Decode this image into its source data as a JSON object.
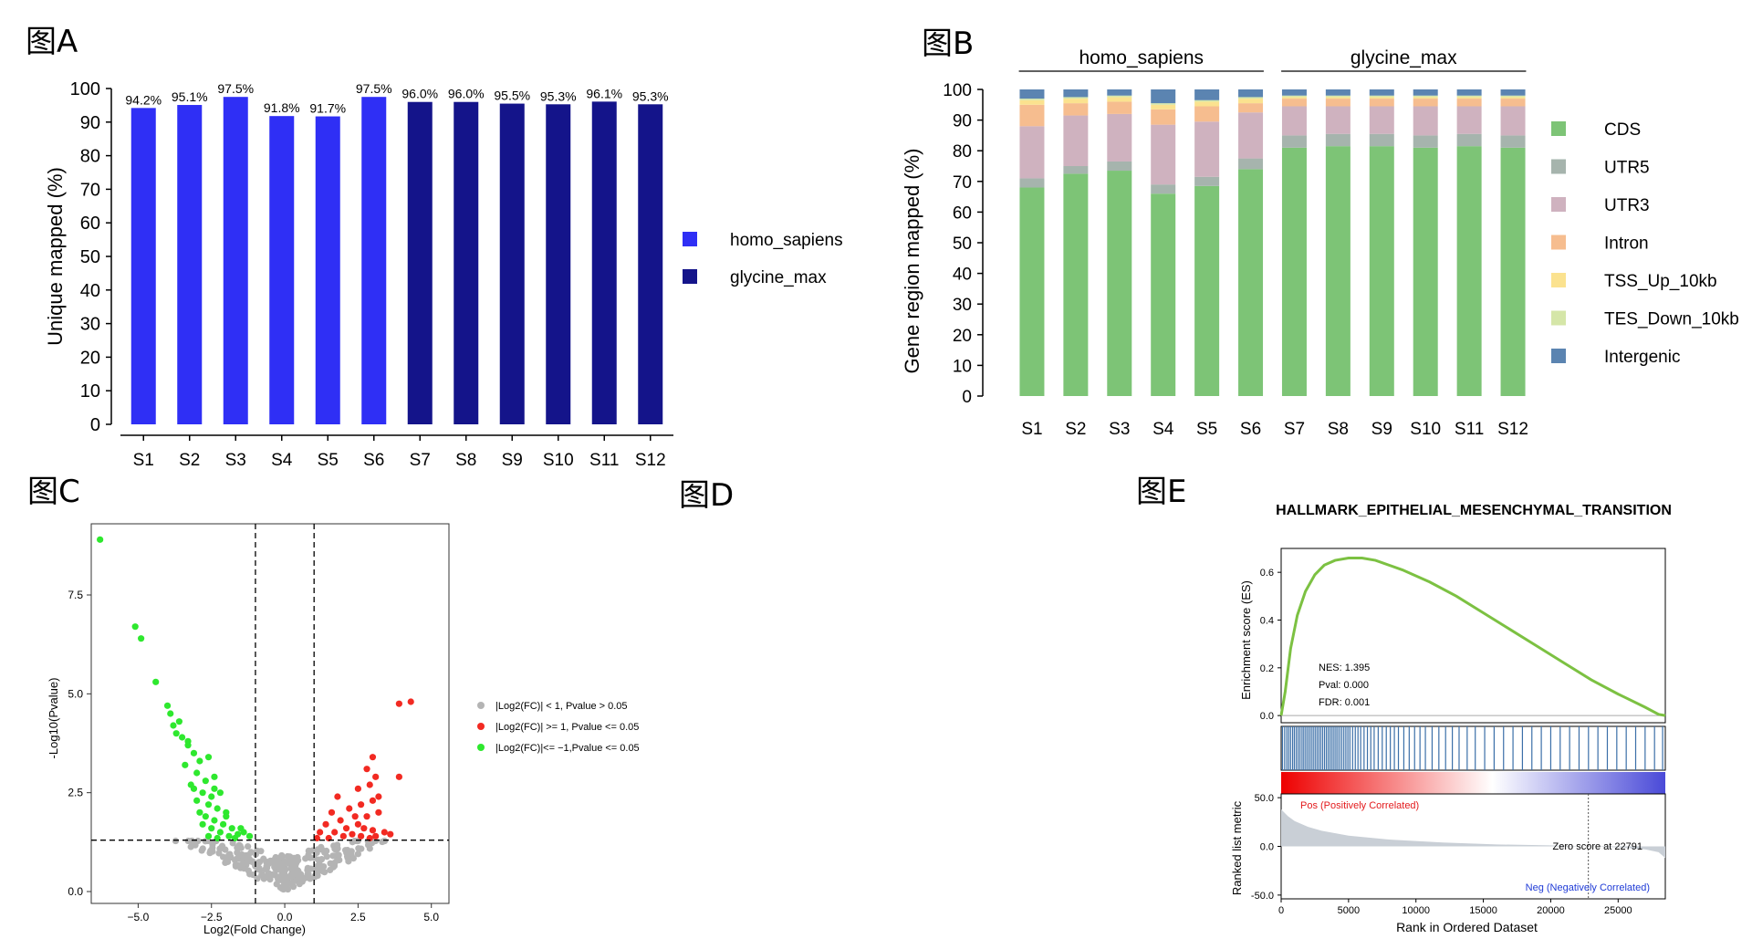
{
  "panels": {
    "A": "图A",
    "B": "图B",
    "C": "图C",
    "D": "图D",
    "E": "图E"
  },
  "chart_data": [
    {
      "id": "A",
      "type": "bar",
      "title": "",
      "ylabel": "Unique mapped (%)",
      "xlabel": "",
      "ylim": [
        0,
        100
      ],
      "yticks": [
        "0",
        "10",
        "20",
        "30",
        "40",
        "50",
        "60",
        "70",
        "80",
        "90",
        "100"
      ],
      "categories": [
        "S1",
        "S2",
        "S3",
        "S4",
        "S5",
        "S6",
        "S7",
        "S8",
        "S9",
        "S10",
        "S11",
        "S12"
      ],
      "values": [
        94.2,
        95.1,
        97.5,
        91.8,
        91.7,
        97.5,
        96.0,
        96.0,
        95.5,
        95.3,
        96.1,
        95.3
      ],
      "value_labels": [
        "94.2%",
        "95.1%",
        "97.5%",
        "91.8%",
        "91.7%",
        "97.5%",
        "96.0%",
        "96.0%",
        "95.5%",
        "95.3%",
        "96.1%",
        "95.3%"
      ],
      "groups": [
        "homo_sapiens",
        "homo_sapiens",
        "homo_sapiens",
        "homo_sapiens",
        "homo_sapiens",
        "homo_sapiens",
        "glycine_max",
        "glycine_max",
        "glycine_max",
        "glycine_max",
        "glycine_max",
        "glycine_max"
      ],
      "legend": [
        {
          "name": "homo_sapiens",
          "color": "#2f2ff5"
        },
        {
          "name": "glycine_max",
          "color": "#14148a"
        }
      ]
    },
    {
      "id": "B",
      "type": "bar",
      "stacked": true,
      "ylabel": "Gene region mapped (%)",
      "ylim": [
        0,
        100
      ],
      "yticks": [
        "0",
        "10",
        "20",
        "30",
        "40",
        "50",
        "60",
        "70",
        "80",
        "90",
        "100"
      ],
      "group_labels": [
        "homo_sapiens",
        "glycine_max"
      ],
      "categories": [
        "S1",
        "S2",
        "S3",
        "S4",
        "S5",
        "S6",
        "S7",
        "S8",
        "S9",
        "S10",
        "S11",
        "S12"
      ],
      "series": [
        {
          "name": "CDS",
          "color": "#7dc476",
          "values": [
            68,
            72.5,
            73.5,
            66,
            68.5,
            74,
            81,
            81.5,
            81.5,
            81,
            81.5,
            81
          ]
        },
        {
          "name": "UTR5",
          "color": "#a6b4ad",
          "values": [
            3,
            2.5,
            3,
            3,
            3,
            3.5,
            4,
            4,
            4,
            4,
            4,
            4
          ]
        },
        {
          "name": "UTR3",
          "color": "#cfb2bf",
          "values": [
            17,
            16.5,
            15.5,
            19.5,
            18,
            15,
            9.5,
            9,
            9,
            9.5,
            9,
            9.5
          ]
        },
        {
          "name": "Intron",
          "color": "#f6bd8f",
          "values": [
            7,
            4,
            4,
            5,
            5,
            3,
            2.5,
            2.5,
            2.5,
            2.5,
            2.5,
            2.5
          ]
        },
        {
          "name": "TSS_Up_10kb",
          "color": "#fbe28f",
          "values": [
            1.5,
            1.5,
            1.5,
            1.5,
            1.5,
            1.5,
            0.5,
            0.5,
            0.5,
            0.5,
            0.5,
            0.5
          ]
        },
        {
          "name": "TES_Down_10kb",
          "color": "#d5e6a8",
          "values": [
            0.5,
            0.5,
            0.5,
            0.5,
            0.5,
            0.5,
            0.5,
            0.5,
            0.5,
            0.5,
            0.5,
            0.5
          ]
        },
        {
          "name": "Intergenic",
          "color": "#5b84b1",
          "values": [
            3,
            2.5,
            2,
            4.5,
            3.5,
            2.5,
            2,
            2,
            2,
            2,
            2,
            2
          ]
        }
      ]
    },
    {
      "id": "C",
      "type": "scatter",
      "title": "",
      "xlabel": "Log2(Fold Change)",
      "ylabel": "-Log10(Pvalue)",
      "xlim": [
        -6.6,
        5.6
      ],
      "ylim": [
        -0.3,
        9.3
      ],
      "xticks": [
        "−5.0",
        "−2.5",
        "0.0",
        "2.5",
        "5.0"
      ],
      "yticks": [
        "0.0",
        "2.5",
        "5.0",
        "7.5"
      ],
      "thresholds": {
        "fc": [
          -1,
          1
        ],
        "p": 1.3
      },
      "legend": [
        {
          "name": "|Log2(FC)| < 1, Pvalue > 0.05",
          "color": "#b4b4b4"
        },
        {
          "name": "|Log2(FC)| >= 1, Pvalue <= 0.05",
          "color": "#f22a22"
        },
        {
          "name": "|Log2(FC)|<= −1,Pvalue <= 0.05",
          "color": "#2ee82e"
        }
      ],
      "down_points": [
        [
          -6.3,
          8.9
        ],
        [
          -5.1,
          6.7
        ],
        [
          -4.9,
          6.4
        ],
        [
          -4.4,
          5.3
        ],
        [
          -4.0,
          4.7
        ],
        [
          -3.9,
          4.5
        ],
        [
          -3.8,
          4.2
        ],
        [
          -3.6,
          4.3
        ],
        [
          -3.5,
          3.9
        ],
        [
          -3.3,
          3.7
        ],
        [
          -3.1,
          3.5
        ],
        [
          -2.9,
          3.3
        ],
        [
          -2.6,
          3.4
        ],
        [
          -3.4,
          3.2
        ],
        [
          -3.0,
          3.0
        ],
        [
          -2.7,
          2.8
        ],
        [
          -2.4,
          2.9
        ],
        [
          -3.2,
          2.7
        ],
        [
          -2.8,
          2.5
        ],
        [
          -2.5,
          2.4
        ],
        [
          -2.2,
          2.5
        ],
        [
          -3.0,
          2.3
        ],
        [
          -2.6,
          2.2
        ],
        [
          -2.3,
          2.1
        ],
        [
          -2.0,
          2.0
        ],
        [
          -2.9,
          2.0
        ],
        [
          -2.7,
          1.9
        ],
        [
          -2.4,
          1.8
        ],
        [
          -2.1,
          1.7
        ],
        [
          -1.8,
          1.6
        ],
        [
          -2.8,
          1.7
        ],
        [
          -2.5,
          1.6
        ],
        [
          -2.2,
          1.5
        ],
        [
          -1.9,
          1.4
        ],
        [
          -1.6,
          1.45
        ],
        [
          -1.4,
          1.5
        ],
        [
          -2.6,
          1.4
        ],
        [
          -2.3,
          1.35
        ],
        [
          -1.7,
          1.35
        ],
        [
          -1.2,
          1.4
        ],
        [
          -3.3,
          3.8
        ],
        [
          -3.7,
          4.0
        ],
        [
          -2.0,
          1.9
        ],
        [
          -1.5,
          1.6
        ],
        [
          -3.1,
          2.6
        ],
        [
          -2.4,
          2.6
        ]
      ],
      "up_points": [
        [
          4.3,
          4.8
        ],
        [
          3.9,
          4.75
        ],
        [
          3.0,
          3.4
        ],
        [
          2.8,
          3.1
        ],
        [
          3.1,
          2.9
        ],
        [
          3.9,
          2.9
        ],
        [
          2.5,
          2.6
        ],
        [
          2.9,
          2.7
        ],
        [
          3.2,
          2.4
        ],
        [
          1.8,
          2.4
        ],
        [
          2.6,
          2.2
        ],
        [
          3.0,
          2.3
        ],
        [
          2.2,
          2.1
        ],
        [
          1.6,
          2.0
        ],
        [
          2.4,
          1.9
        ],
        [
          2.8,
          1.9
        ],
        [
          3.2,
          2.0
        ],
        [
          1.9,
          1.8
        ],
        [
          2.5,
          1.7
        ],
        [
          1.4,
          1.7
        ],
        [
          2.1,
          1.6
        ],
        [
          2.7,
          1.6
        ],
        [
          3.0,
          1.55
        ],
        [
          1.7,
          1.5
        ],
        [
          2.3,
          1.45
        ],
        [
          1.2,
          1.5
        ],
        [
          2.0,
          1.4
        ],
        [
          2.6,
          1.4
        ],
        [
          1.5,
          1.35
        ],
        [
          3.1,
          1.4
        ],
        [
          3.4,
          1.5
        ],
        [
          3.6,
          1.45
        ],
        [
          2.9,
          1.35
        ],
        [
          1.1,
          1.35
        ]
      ]
    },
    {
      "id": "E",
      "type": "line",
      "title": "HALLMARK_EPITHELIAL_MESENCHYMAL_TRANSITION",
      "ylabel": "Enrichment score (ES)",
      "xlabel": "Rank in Ordered Dataset",
      "es_yticks": [
        "0.0",
        "0.2",
        "0.4",
        "0.6"
      ],
      "es_ylim": [
        -0.03,
        0.7
      ],
      "xlim": [
        0,
        28500
      ],
      "xticks": [
        "0",
        "5000",
        "10000",
        "15000",
        "20000",
        "25000"
      ],
      "es_curve": [
        [
          0,
          0
        ],
        [
          300,
          0.1
        ],
        [
          700,
          0.28
        ],
        [
          1200,
          0.42
        ],
        [
          1800,
          0.52
        ],
        [
          2500,
          0.59
        ],
        [
          3200,
          0.63
        ],
        [
          4000,
          0.65
        ],
        [
          5000,
          0.66
        ],
        [
          6000,
          0.66
        ],
        [
          7000,
          0.65
        ],
        [
          9000,
          0.61
        ],
        [
          11000,
          0.56
        ],
        [
          13000,
          0.5
        ],
        [
          15000,
          0.43
        ],
        [
          17000,
          0.36
        ],
        [
          19000,
          0.29
        ],
        [
          21000,
          0.22
        ],
        [
          23000,
          0.15
        ],
        [
          25000,
          0.09
        ],
        [
          27000,
          0.035
        ],
        [
          28000,
          0.005
        ],
        [
          28500,
          0
        ]
      ],
      "stats": [
        "NES: 1.395",
        "Pval: 0.000",
        "FDR: 0.001"
      ],
      "metric_ylabel": "Ranked list metric",
      "metric_yticks": [
        "50.0",
        "0.0",
        "-50.0"
      ],
      "metric_ylim": [
        -52,
        52
      ],
      "metric_curve": [
        [
          0,
          38
        ],
        [
          500,
          31
        ],
        [
          1000,
          26
        ],
        [
          2000,
          20
        ],
        [
          3000,
          16
        ],
        [
          5000,
          11
        ],
        [
          8000,
          7
        ],
        [
          12000,
          4
        ],
        [
          16000,
          2
        ],
        [
          20000,
          1
        ],
        [
          22791,
          0
        ],
        [
          25000,
          -1
        ],
        [
          27000,
          -3
        ],
        [
          28000,
          -6
        ],
        [
          28500,
          -12
        ]
      ],
      "pos_label": "Pos (Positively Correlated)",
      "neg_label": "Neg (Negatively Correlated)",
      "zero_label": "Zero score at 22791",
      "zero_rank": 22791,
      "hit_ranks": [
        100,
        260,
        420,
        560,
        700,
        850,
        980,
        1120,
        1260,
        1400,
        1550,
        1680,
        1820,
        1960,
        2100,
        2240,
        2380,
        2520,
        2660,
        2800,
        2940,
        3080,
        3220,
        3360,
        3500,
        3640,
        3780,
        3920,
        4060,
        4200,
        4350,
        4500,
        4650,
        4800,
        4950,
        5100,
        5300,
        5500,
        5700,
        5900,
        6150,
        6400,
        6650,
        6900,
        7200,
        7500,
        7800,
        8100,
        8400,
        8700,
        9100,
        9500,
        9900,
        10300,
        10700,
        11200,
        11700,
        12200,
        12700,
        13200,
        13800,
        14400,
        15100,
        15800,
        16500,
        17200,
        17900,
        18600,
        19300,
        20000,
        20700,
        21400,
        22100,
        22800,
        23500,
        24200,
        24900,
        25600,
        26300,
        27000,
        27700,
        28300
      ]
    }
  ]
}
